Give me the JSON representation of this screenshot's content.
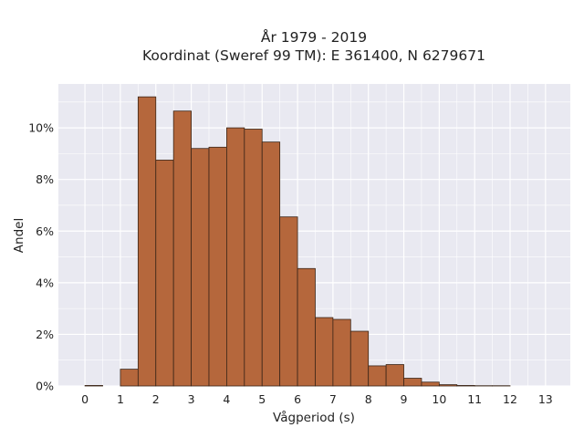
{
  "chart_data": {
    "type": "bar",
    "title_lines": [
      "År 1979 - 2019",
      "Koordinat (Sweref 99 TM): E 361400, N 6279671"
    ],
    "xlabel": "Vågperiod (s)",
    "ylabel": "Andel",
    "bin_width": 0.5,
    "bins": [
      {
        "start": 0.0,
        "value": 0.02
      },
      {
        "start": 0.5,
        "value": 0.0
      },
      {
        "start": 1.0,
        "value": 0.65
      },
      {
        "start": 1.5,
        "value": 11.2
      },
      {
        "start": 2.0,
        "value": 8.75
      },
      {
        "start": 2.5,
        "value": 10.65
      },
      {
        "start": 3.0,
        "value": 9.2
      },
      {
        "start": 3.5,
        "value": 9.25
      },
      {
        "start": 4.0,
        "value": 10.0
      },
      {
        "start": 4.5,
        "value": 9.95
      },
      {
        "start": 5.0,
        "value": 9.45
      },
      {
        "start": 5.5,
        "value": 6.55
      },
      {
        "start": 6.0,
        "value": 4.55
      },
      {
        "start": 6.5,
        "value": 2.65
      },
      {
        "start": 7.0,
        "value": 2.58
      },
      {
        "start": 7.5,
        "value": 2.12
      },
      {
        "start": 8.0,
        "value": 0.78
      },
      {
        "start": 8.5,
        "value": 0.83
      },
      {
        "start": 9.0,
        "value": 0.3
      },
      {
        "start": 9.5,
        "value": 0.15
      },
      {
        "start": 10.0,
        "value": 0.05
      },
      {
        "start": 10.5,
        "value": 0.02
      },
      {
        "start": 11.0,
        "value": 0.01
      },
      {
        "start": 11.5,
        "value": 0.01
      }
    ],
    "xlim": [
      -0.75,
      13.7
    ],
    "ylim": [
      0,
      11.7
    ],
    "x_ticks": [
      0,
      1,
      2,
      3,
      4,
      5,
      6,
      7,
      8,
      9,
      10,
      11,
      12,
      13
    ],
    "x_tick_labels": [
      "0",
      "1",
      "2",
      "3",
      "4",
      "5",
      "6",
      "7",
      "8",
      "9",
      "10",
      "11",
      "12",
      "13"
    ],
    "y_ticks": [
      0,
      2,
      4,
      6,
      8,
      10
    ],
    "y_tick_labels": [
      "0%",
      "2%",
      "4%",
      "6%",
      "8%",
      "10%"
    ],
    "grid": true,
    "colors": {
      "bar_fill": "#b5673c",
      "bar_edge": "#3a2518",
      "plot_background": "#e9e9f1",
      "grid": "#ffffff"
    }
  }
}
